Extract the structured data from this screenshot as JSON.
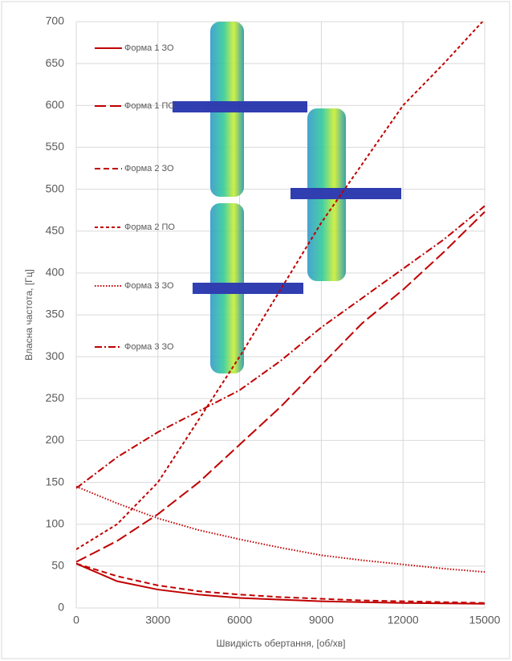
{
  "chart_data": {
    "type": "line",
    "x_label": "Швидкість обертання, [об/хв]",
    "y_label": "Власна частота, [Гц]",
    "x": [
      0,
      1500,
      3000,
      4500,
      6000,
      7500,
      9000,
      10500,
      12000,
      13500,
      15000
    ],
    "series": [
      {
        "name": "Форма 1 ЗО",
        "color": "#c00000",
        "line_style": "solid",
        "values": [
          53,
          32,
          22,
          16,
          12,
          10,
          8,
          7,
          6,
          5.5,
          5
        ]
      },
      {
        "name": "Форма 1 ПО",
        "color": "#c00000",
        "line_style": "long-dash",
        "values": [
          55,
          80,
          112,
          150,
          195,
          240,
          290,
          340,
          380,
          425,
          473
        ]
      },
      {
        "name": "Форма 2 ЗО",
        "color": "#c00000",
        "line_style": "dash",
        "values": [
          53,
          38,
          27,
          20,
          16,
          13,
          11,
          9,
          8,
          7,
          6
        ]
      },
      {
        "name": "Форма 2 ПО",
        "color": "#c00000",
        "line_style": "short-dash",
        "values": [
          70,
          100,
          150,
          225,
          300,
          380,
          460,
          530,
          600,
          650,
          703
        ]
      },
      {
        "name": "Форма 3 ЗО",
        "color": "#c00000",
        "line_style": "dot",
        "values": [
          145,
          125,
          107,
          93,
          82,
          72,
          63,
          57,
          52,
          47,
          43
        ]
      },
      {
        "name": "Форма 3 ЗО",
        "color": "#c00000",
        "line_style": "dash-dot",
        "values": [
          143,
          180,
          210,
          235,
          260,
          295,
          335,
          370,
          405,
          440,
          480
        ]
      }
    ],
    "xlim": [
      0,
      15000
    ],
    "xticks": [
      0,
      3000,
      6000,
      9000,
      12000,
      15000
    ],
    "ylim": [
      0,
      700
    ],
    "yticks": [
      0,
      50,
      100,
      150,
      200,
      250,
      300,
      350,
      400,
      450,
      500,
      550,
      600,
      650,
      700
    ],
    "grid": true
  }
}
